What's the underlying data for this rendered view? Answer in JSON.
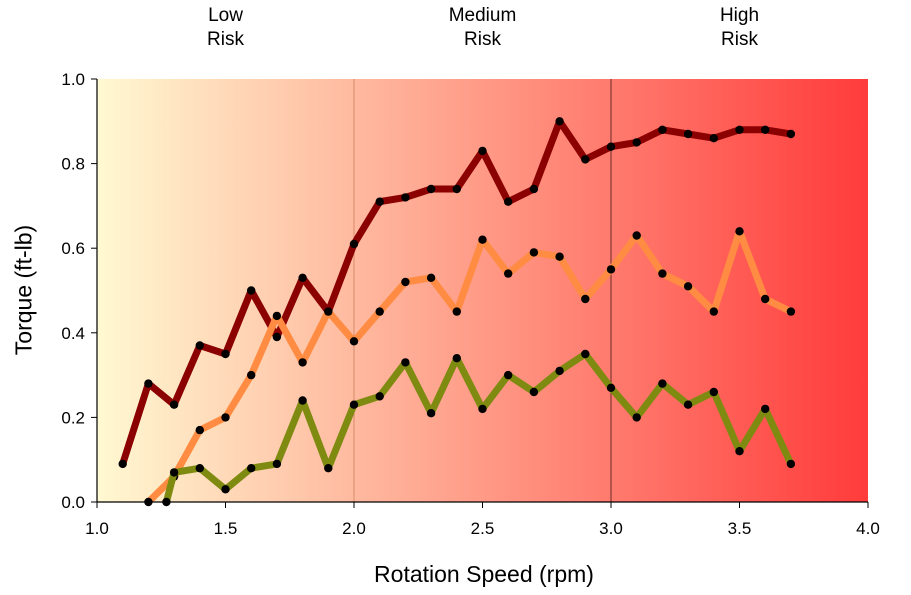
{
  "chart_data": {
    "type": "line",
    "xlabel": "Rotation Speed (rpm)",
    "ylabel": "Torque (ft-lb)",
    "xlim": [
      1.0,
      4.0
    ],
    "ylim": [
      0.0,
      1.0
    ],
    "x_ticks": [
      "1.0",
      "1.5",
      "2.0",
      "2.5",
      "3.0",
      "3.5",
      "4.0"
    ],
    "y_ticks": [
      "0.0",
      "0.2",
      "0.4",
      "0.6",
      "0.8",
      "1.0"
    ],
    "grid": false,
    "background": {
      "gradient_from": "#fff9d2",
      "gradient_to": "#ff3b3b",
      "zone_dividers_x": [
        2.0,
        3.0
      ],
      "zone_labels": [
        {
          "text": "Low\nRisk",
          "x_center": 1.5
        },
        {
          "text": "Medium\nRisk",
          "x_center": 2.5
        },
        {
          "text": "High\nRisk",
          "x_center": 3.5
        }
      ]
    },
    "series": [
      {
        "color": "#8b0000",
        "x": [
          1.1,
          1.2,
          1.3,
          1.4,
          1.5,
          1.6,
          1.7,
          1.8,
          1.9,
          2.0,
          2.1,
          2.2,
          2.3,
          2.4,
          2.5,
          2.6,
          2.7,
          2.8,
          2.9,
          3.0,
          3.1,
          3.2,
          3.3,
          3.4,
          3.5,
          3.6,
          3.7
        ],
        "y": [
          0.09,
          0.28,
          0.23,
          0.37,
          0.35,
          0.5,
          0.39,
          0.53,
          0.45,
          0.61,
          0.71,
          0.72,
          0.74,
          0.74,
          0.83,
          0.71,
          0.74,
          0.9,
          0.81,
          0.84,
          0.85,
          0.88,
          0.87,
          0.86,
          0.88,
          0.88,
          0.87
        ]
      },
      {
        "color": "#ff8c42",
        "x": [
          1.2,
          1.3,
          1.4,
          1.5,
          1.6,
          1.7,
          1.8,
          1.9,
          2.0,
          2.1,
          2.2,
          2.3,
          2.4,
          2.5,
          2.6,
          2.7,
          2.8,
          2.9,
          3.0,
          3.1,
          3.2,
          3.3,
          3.4,
          3.5,
          3.6,
          3.7
        ],
        "y": [
          0.0,
          0.06,
          0.17,
          0.2,
          0.3,
          0.44,
          0.33,
          0.45,
          0.38,
          0.45,
          0.52,
          0.53,
          0.45,
          0.62,
          0.54,
          0.59,
          0.58,
          0.48,
          0.55,
          0.63,
          0.54,
          0.51,
          0.45,
          0.64,
          0.48,
          0.45
        ]
      },
      {
        "color": "#7f8b10",
        "x": [
          1.27,
          1.3,
          1.4,
          1.5,
          1.6,
          1.7,
          1.8,
          1.9,
          2.0,
          2.1,
          2.2,
          2.3,
          2.4,
          2.5,
          2.6,
          2.7,
          2.8,
          2.9,
          3.0,
          3.1,
          3.2,
          3.3,
          3.4,
          3.5,
          3.6,
          3.7
        ],
        "y": [
          0.0,
          0.07,
          0.08,
          0.03,
          0.08,
          0.09,
          0.24,
          0.08,
          0.23,
          0.25,
          0.33,
          0.21,
          0.34,
          0.22,
          0.3,
          0.26,
          0.31,
          0.35,
          0.27,
          0.2,
          0.28,
          0.23,
          0.26,
          0.12,
          0.22,
          0.09
        ]
      }
    ]
  }
}
